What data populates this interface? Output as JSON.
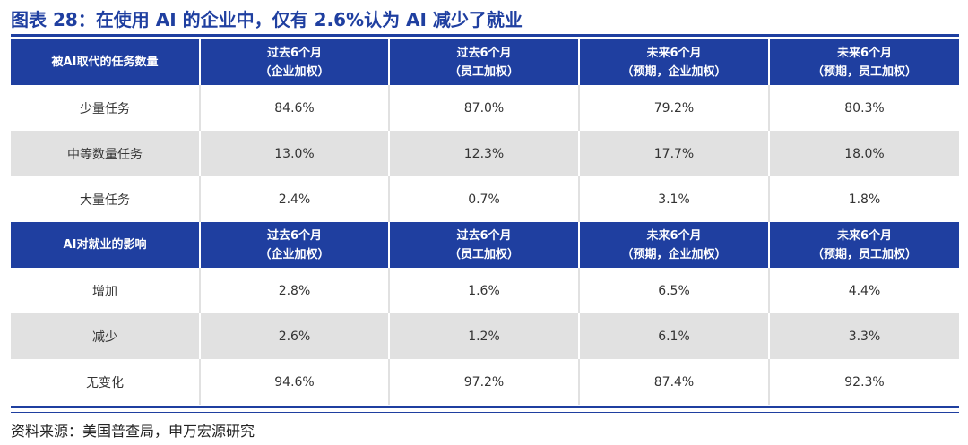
{
  "title": "图表 28：在使用 AI 的企业中，仅有 2.6%认为 AI 减少了就业",
  "sections": [
    {
      "header": {
        "label": "被AI取代的任务数量",
        "columns": [
          {
            "line1": "过去6个月",
            "line2": "（企业加权）"
          },
          {
            "line1": "过去6个月",
            "line2": "（员工加权）"
          },
          {
            "line1": "未来6个月",
            "line2": "（预期，企业加权）"
          },
          {
            "line1": "未来6个月",
            "line2": "（预期，员工加权）"
          }
        ]
      },
      "rows": [
        {
          "label": "少量任务",
          "values": [
            "84.6%",
            "87.0%",
            "79.2%",
            "80.3%"
          ]
        },
        {
          "label": "中等数量任务",
          "values": [
            "13.0%",
            "12.3%",
            "17.7%",
            "18.0%"
          ]
        },
        {
          "label": "大量任务",
          "values": [
            "2.4%",
            "0.7%",
            "3.1%",
            "1.8%"
          ]
        }
      ]
    },
    {
      "header": {
        "label": "AI对就业的影响",
        "columns": [
          {
            "line1": "过去6个月",
            "line2": "（企业加权）"
          },
          {
            "line1": "过去6个月",
            "line2": "（员工加权）"
          },
          {
            "line1": "未来6个月",
            "line2": "（预期，企业加权）"
          },
          {
            "line1": "未来6个月",
            "line2": "（预期，员工加权）"
          }
        ]
      },
      "rows": [
        {
          "label": "增加",
          "values": [
            "2.8%",
            "1.6%",
            "6.5%",
            "4.4%"
          ]
        },
        {
          "label": "减少",
          "values": [
            "2.6%",
            "1.2%",
            "6.1%",
            "3.3%"
          ]
        },
        {
          "label": "无变化",
          "values": [
            "94.6%",
            "97.2%",
            "87.4%",
            "92.3%"
          ]
        }
      ]
    }
  ],
  "source": "资料来源：美国普查局，申万宏源研究",
  "colors": {
    "accent": "#1f3fa0",
    "stripe": "#e1e1e1"
  }
}
